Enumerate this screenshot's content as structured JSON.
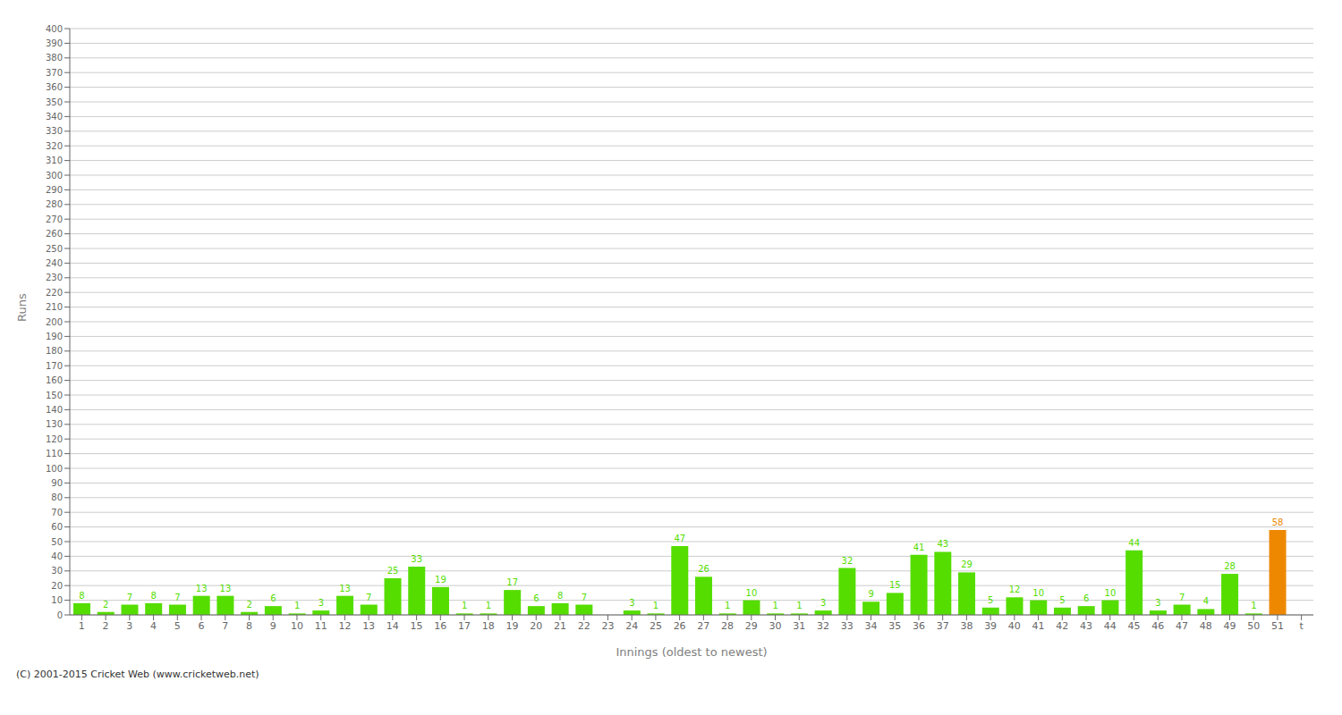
{
  "chart_data": {
    "type": "bar",
    "categories": [
      "1",
      "2",
      "3",
      "4",
      "5",
      "6",
      "7",
      "8",
      "9",
      "10",
      "11",
      "12",
      "13",
      "14",
      "15",
      "16",
      "17",
      "18",
      "19",
      "20",
      "21",
      "22",
      "23",
      "24",
      "25",
      "26",
      "27",
      "28",
      "29",
      "30",
      "31",
      "32",
      "33",
      "34",
      "35",
      "36",
      "37",
      "38",
      "39",
      "40",
      "41",
      "42",
      "43",
      "44",
      "45",
      "46",
      "47",
      "48",
      "49",
      "50",
      "51",
      "t"
    ],
    "values": [
      8,
      2,
      7,
      8,
      7,
      13,
      13,
      2,
      6,
      1,
      3,
      13,
      7,
      25,
      33,
      19,
      1,
      1,
      17,
      6,
      8,
      7,
      0,
      3,
      1,
      47,
      26,
      1,
      10,
      1,
      1,
      3,
      32,
      9,
      15,
      41,
      43,
      29,
      5,
      12,
      10,
      5,
      6,
      10,
      44,
      3,
      7,
      4,
      28,
      1,
      58,
      0
    ],
    "colors": [
      "#55dd00",
      "#55dd00",
      "#55dd00",
      "#55dd00",
      "#55dd00",
      "#55dd00",
      "#55dd00",
      "#55dd00",
      "#55dd00",
      "#55dd00",
      "#55dd00",
      "#55dd00",
      "#55dd00",
      "#55dd00",
      "#55dd00",
      "#55dd00",
      "#55dd00",
      "#55dd00",
      "#55dd00",
      "#55dd00",
      "#55dd00",
      "#55dd00",
      "#55dd00",
      "#55dd00",
      "#55dd00",
      "#55dd00",
      "#55dd00",
      "#55dd00",
      "#55dd00",
      "#55dd00",
      "#55dd00",
      "#55dd00",
      "#55dd00",
      "#55dd00",
      "#55dd00",
      "#55dd00",
      "#55dd00",
      "#55dd00",
      "#55dd00",
      "#55dd00",
      "#55dd00",
      "#55dd00",
      "#55dd00",
      "#55dd00",
      "#55dd00",
      "#55dd00",
      "#55dd00",
      "#55dd00",
      "#55dd00",
      "#55dd00",
      "#ee8800",
      "#55dd00"
    ],
    "xlabel": "Innings (oldest to newest)",
    "ylabel": "Runs",
    "ylim": [
      0,
      400
    ],
    "yticks": [
      0,
      10,
      20,
      30,
      40,
      50,
      60,
      70,
      80,
      90,
      100,
      110,
      120,
      130,
      140,
      150,
      160,
      170,
      180,
      190,
      200,
      210,
      220,
      230,
      240,
      250,
      260,
      270,
      280,
      290,
      300,
      310,
      320,
      330,
      340,
      350,
      360,
      370,
      380,
      390,
      400
    ],
    "grid": true,
    "data_labels": true,
    "annotations": [
      "(C) 2001-2015 Cricket Web (www.cricketweb.net)"
    ]
  }
}
